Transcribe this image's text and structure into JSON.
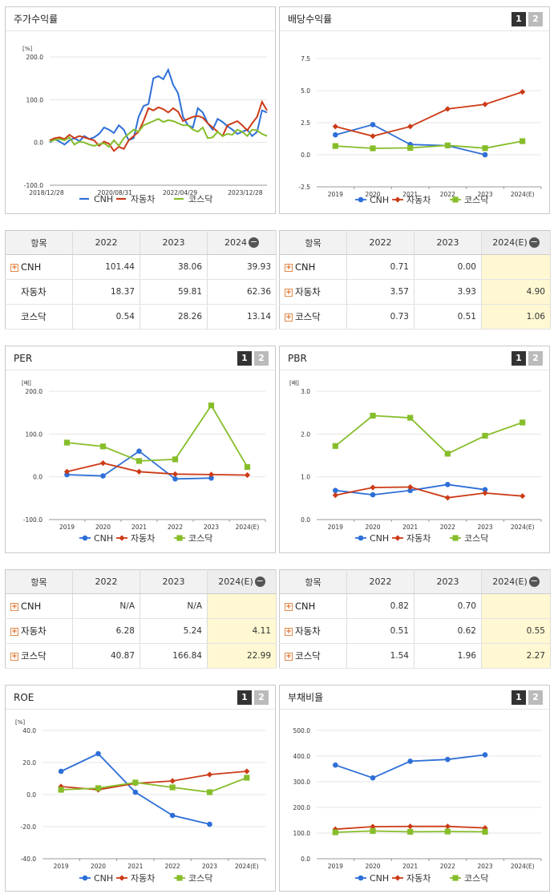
{
  "colors": {
    "cnh": "#2e6fd8",
    "auto": "#cc3a16",
    "kosdaq": "#86bd2a"
  },
  "legend": [
    "CNH",
    "자동차",
    "코스닥"
  ],
  "chart_data": [
    {
      "id": "stock",
      "title": "주가수익률",
      "type": "line",
      "unit": "[%]",
      "yticks": [
        "200.0",
        "100.0",
        "0.0",
        "-100.0"
      ],
      "ylim": [
        -100,
        200
      ],
      "xticks": [
        "2018/12/28",
        "2020/08/31",
        "2022/04/29",
        "2023/12/28"
      ],
      "series": [
        {
          "name": "CNH",
          "values": [
            0,
            8,
            2,
            -5,
            5,
            10,
            3,
            15,
            8,
            12,
            20,
            35,
            30,
            22,
            40,
            30,
            5,
            10,
            60,
            85,
            90,
            150,
            155,
            148,
            170,
            135,
            115,
            60,
            40,
            35,
            80,
            70,
            45,
            30,
            55,
            48,
            38,
            30,
            20,
            25,
            30,
            15,
            25,
            75,
            70
          ]
        },
        {
          "name": "자동차",
          "values": [
            5,
            10,
            12,
            8,
            18,
            10,
            15,
            12,
            8,
            5,
            -8,
            2,
            -3,
            -20,
            -10,
            -15,
            5,
            15,
            25,
            50,
            80,
            75,
            82,
            78,
            70,
            80,
            72,
            50,
            55,
            60,
            62,
            58,
            45,
            35,
            25,
            15,
            40,
            45,
            50,
            40,
            28,
            45,
            60,
            95,
            75
          ]
        },
        {
          "name": "코스닥",
          "values": [
            2,
            6,
            8,
            5,
            12,
            -5,
            2,
            0,
            -5,
            -8,
            -4,
            -2,
            -10,
            5,
            -8,
            10,
            20,
            30,
            25,
            40,
            45,
            50,
            55,
            48,
            52,
            50,
            45,
            40,
            40,
            30,
            25,
            35,
            10,
            12,
            25,
            15,
            20,
            18,
            30,
            25,
            15,
            30,
            28,
            20,
            15
          ]
        }
      ]
    },
    {
      "id": "dividend",
      "title": "배당수익률",
      "type": "line",
      "yticks": [
        "7.5",
        "5.0",
        "2.5",
        "0.0",
        "-2.5"
      ],
      "ylim": [
        -2.5,
        7.5
      ],
      "categories": [
        "2019",
        "2020",
        "2021",
        "2022",
        "2023",
        "2024(E)"
      ],
      "series": [
        {
          "name": "CNH",
          "values": [
            1.55,
            2.35,
            0.8,
            0.71,
            0.0,
            null
          ]
        },
        {
          "name": "자동차",
          "values": [
            2.2,
            1.45,
            2.2,
            3.57,
            3.93,
            4.9
          ]
        },
        {
          "name": "코스닥",
          "values": [
            0.68,
            0.5,
            0.53,
            0.73,
            0.51,
            1.06
          ]
        }
      ]
    },
    {
      "id": "per",
      "title": "PER",
      "type": "line",
      "unit": "[배]",
      "yticks": [
        "200.0",
        "100.0",
        "0.0",
        "-100.0"
      ],
      "ylim": [
        -100,
        200
      ],
      "categories": [
        "2019",
        "2020",
        "2021",
        "2022",
        "2023",
        "2024(E)"
      ],
      "series": [
        {
          "name": "CNH",
          "values": [
            5,
            2,
            60,
            -5,
            -3,
            null
          ]
        },
        {
          "name": "자동차",
          "values": [
            12,
            32,
            12,
            6.28,
            5.24,
            4.11
          ]
        },
        {
          "name": "코스닥",
          "values": [
            80,
            71,
            37,
            40.87,
            166.84,
            22.99
          ]
        }
      ]
    },
    {
      "id": "pbr",
      "title": "PBR",
      "type": "line",
      "unit": "[배]",
      "yticks": [
        "3.0",
        "2.0",
        "1.0",
        "0.0"
      ],
      "ylim": [
        0,
        3
      ],
      "categories": [
        "2019",
        "2020",
        "2021",
        "2022",
        "2023",
        "2024(E)"
      ],
      "series": [
        {
          "name": "CNH",
          "values": [
            0.68,
            0.58,
            0.68,
            0.82,
            0.7,
            null
          ]
        },
        {
          "name": "자동차",
          "values": [
            0.57,
            0.75,
            0.76,
            0.51,
            0.62,
            0.55
          ]
        },
        {
          "name": "코스닥",
          "values": [
            1.72,
            2.43,
            2.38,
            1.54,
            1.96,
            2.27
          ]
        }
      ]
    },
    {
      "id": "roe",
      "title": "ROE",
      "type": "line",
      "unit": "[%]",
      "yticks": [
        "40.0",
        "20.0",
        "0.0",
        "-20.0",
        "-40.0"
      ],
      "ylim": [
        -40,
        40
      ],
      "categories": [
        "2019",
        "2020",
        "2021",
        "2022",
        "2023",
        "2024(E)"
      ],
      "series": [
        {
          "name": "CNH",
          "values": [
            14.5,
            25.5,
            1.5,
            -13,
            -18.5,
            null
          ]
        },
        {
          "name": "자동차",
          "values": [
            5,
            3,
            7,
            8.5,
            12.5,
            14.5
          ]
        },
        {
          "name": "코스닥",
          "values": [
            3,
            4,
            7.5,
            4.5,
            1.5,
            10.5
          ]
        }
      ]
    },
    {
      "id": "debt",
      "title": "부채비율",
      "type": "line",
      "yticks": [
        "500.0",
        "400.0",
        "300.0",
        "200.0",
        "100.0",
        "0.0"
      ],
      "ylim": [
        0,
        500
      ],
      "categories": [
        "2019",
        "2020",
        "2021",
        "2022",
        "2023",
        "2024(E)"
      ],
      "series": [
        {
          "name": "CNH",
          "values": [
            365,
            315,
            380,
            387,
            405,
            null
          ]
        },
        {
          "name": "자동차",
          "values": [
            115,
            125,
            126,
            126,
            120,
            null
          ]
        },
        {
          "name": "코스닥",
          "values": [
            103,
            108,
            105,
            106,
            105,
            null
          ]
        }
      ]
    }
  ],
  "tables": [
    {
      "id": "t-stock",
      "header": [
        "항목",
        "2022",
        "2023",
        "2024"
      ],
      "rows": [
        [
          "CNH",
          "101.44",
          "38.06",
          "39.93"
        ],
        [
          "자동차",
          "18.37",
          "59.81",
          "62.36"
        ],
        [
          "코스닥",
          "0.54",
          "28.26",
          "13.14"
        ]
      ]
    },
    {
      "id": "t-dividend",
      "header": [
        "항목",
        "2022",
        "2023",
        "2024(E)"
      ],
      "rows": [
        [
          "CNH",
          "0.71",
          "0.00",
          ""
        ],
        [
          "자동차",
          "3.57",
          "3.93",
          "4.90"
        ],
        [
          "코스닥",
          "0.73",
          "0.51",
          "1.06"
        ]
      ]
    },
    {
      "id": "t-per",
      "header": [
        "항목",
        "2022",
        "2023",
        "2024(E)"
      ],
      "rows": [
        [
          "CNH",
          "N/A",
          "N/A",
          ""
        ],
        [
          "자동차",
          "6.28",
          "5.24",
          "4.11"
        ],
        [
          "코스닥",
          "40.87",
          "166.84",
          "22.99"
        ]
      ]
    },
    {
      "id": "t-pbr",
      "header": [
        "항목",
        "2022",
        "2023",
        "2024(E)"
      ],
      "rows": [
        [
          "CNH",
          "0.82",
          "0.70",
          ""
        ],
        [
          "자동차",
          "0.51",
          "0.62",
          "0.55"
        ],
        [
          "코스닥",
          "1.54",
          "1.96",
          "2.27"
        ]
      ]
    }
  ]
}
